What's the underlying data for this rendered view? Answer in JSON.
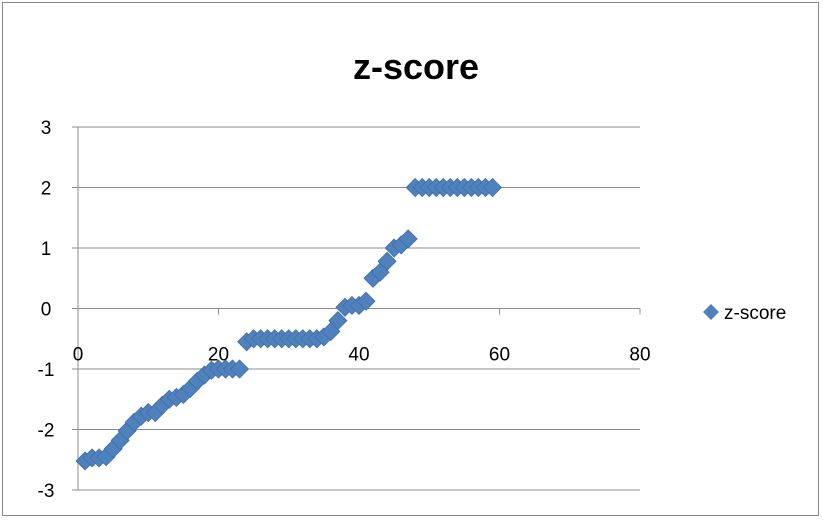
{
  "chart_data": {
    "type": "scatter",
    "title": "z-score",
    "xlabel": "",
    "ylabel": "",
    "xlim": [
      0,
      80
    ],
    "ylim": [
      -3,
      3
    ],
    "x_ticks": [
      0,
      20,
      40,
      60,
      80
    ],
    "y_ticks": [
      3,
      2,
      1,
      0,
      -1,
      -2,
      -3
    ],
    "x_tick_labels": [
      "0",
      "20",
      "40",
      "60",
      "80"
    ],
    "y_tick_labels": [
      "3",
      "2",
      "1",
      "0",
      "-1",
      "-2",
      "-3"
    ],
    "grid": "horizontal",
    "legend_position": "right",
    "marker": "diamond",
    "marker_color": "#4F81BD",
    "series": [
      {
        "name": "z-score",
        "x": [
          1,
          2,
          3,
          4,
          5,
          6,
          7,
          8,
          9,
          10,
          11,
          12,
          13,
          14,
          15,
          16,
          17,
          18,
          19,
          20,
          21,
          22,
          23,
          24,
          25,
          26,
          27,
          28,
          29,
          30,
          31,
          32,
          33,
          34,
          35,
          36,
          37,
          38,
          39,
          40,
          41,
          42,
          43,
          44,
          45,
          46,
          47,
          48,
          49,
          50,
          51,
          52,
          53,
          54,
          55,
          56,
          57,
          58,
          59
        ],
        "y": [
          -2.52,
          -2.47,
          -2.47,
          -2.45,
          -2.32,
          -2.18,
          -2.02,
          -1.88,
          -1.78,
          -1.72,
          -1.72,
          -1.6,
          -1.5,
          -1.47,
          -1.42,
          -1.32,
          -1.2,
          -1.1,
          -1.02,
          -1.0,
          -1.0,
          -1.0,
          -1.0,
          -0.55,
          -0.5,
          -0.5,
          -0.5,
          -0.5,
          -0.5,
          -0.5,
          -0.5,
          -0.5,
          -0.5,
          -0.5,
          -0.47,
          -0.38,
          -0.2,
          0.02,
          0.05,
          0.05,
          0.12,
          0.5,
          0.6,
          0.78,
          1.0,
          1.05,
          1.15,
          2.0,
          2.0,
          2.0,
          2.0,
          2.0,
          2.0,
          2.0,
          2.0,
          2.0,
          2.0,
          2.0,
          2.0
        ]
      }
    ]
  }
}
